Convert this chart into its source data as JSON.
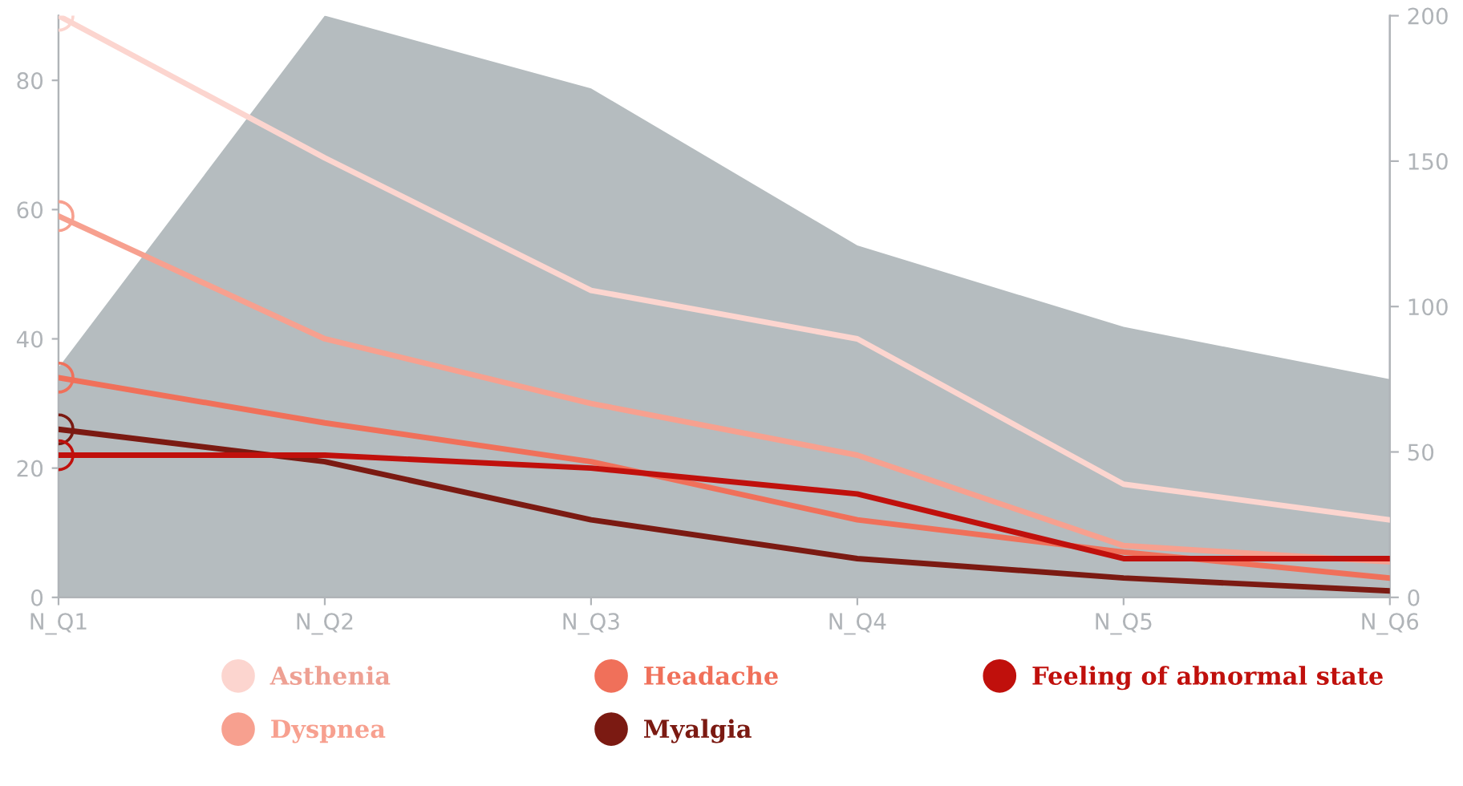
{
  "chart_data": {
    "type": "line",
    "categories": [
      "N_Q1",
      "N_Q2",
      "N_Q3",
      "N_Q4",
      "N_Q5",
      "N_Q6"
    ],
    "series": [
      {
        "type": "area",
        "axis": "y2",
        "color": "#b5bcbf",
        "values": [
          79,
          200,
          175,
          121,
          93,
          75
        ]
      },
      {
        "name": "Asthenia",
        "color": "#fcd5cf",
        "values": [
          90,
          68,
          47.5,
          40,
          17.5,
          12
        ]
      },
      {
        "name": "Dyspnea",
        "color": "#f7a08f",
        "values": [
          59,
          40,
          30,
          22,
          8,
          5.5
        ]
      },
      {
        "name": "Headache",
        "color": "#f0705a",
        "values": [
          34,
          27,
          21,
          12,
          7,
          3
        ]
      },
      {
        "name": "Myalgia",
        "color": "#7b1a12",
        "values": [
          26,
          21,
          12,
          6,
          3,
          1
        ]
      },
      {
        "name": "Feeling of abnormal state",
        "color": "#c0100c",
        "values": [
          22,
          22,
          20,
          16,
          6,
          6
        ]
      }
    ],
    "ylim": [
      0,
      90
    ],
    "yticks": [
      0,
      20,
      40,
      60,
      80
    ],
    "y2lim": [
      0,
      200
    ],
    "y2ticks": [
      0,
      50,
      100,
      150,
      200
    ],
    "legend": "bottom",
    "grid": false
  }
}
